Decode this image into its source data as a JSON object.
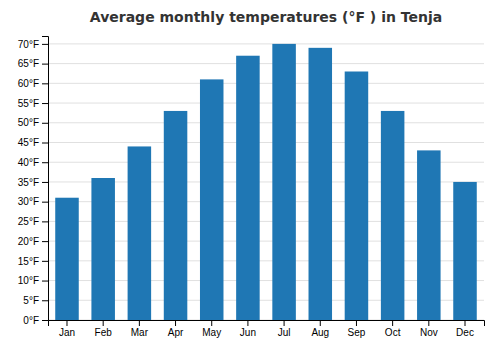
{
  "chart_data": {
    "type": "bar",
    "title": "Average monthly temperatures (°F ) in Tenja",
    "categories": [
      "Jan",
      "Feb",
      "Mar",
      "Apr",
      "May",
      "Jun",
      "Jul",
      "Aug",
      "Sep",
      "Oct",
      "Nov",
      "Dec"
    ],
    "values": [
      31,
      36,
      44,
      53,
      61,
      67,
      70,
      69,
      63,
      53,
      43,
      35
    ],
    "ylim": [
      0,
      72
    ],
    "yticks": [
      {
        "value": 0,
        "label": "0°F"
      },
      {
        "value": 5,
        "label": "5°F"
      },
      {
        "value": 10,
        "label": "10°F"
      },
      {
        "value": 15,
        "label": "15°F"
      },
      {
        "value": 20,
        "label": "20°F"
      },
      {
        "value": 25,
        "label": "25°F"
      },
      {
        "value": 30,
        "label": "30°F"
      },
      {
        "value": 35,
        "label": "35°F"
      },
      {
        "value": 40,
        "label": "40°F"
      },
      {
        "value": 45,
        "label": "45°F"
      },
      {
        "value": 50,
        "label": "50°F"
      },
      {
        "value": 55,
        "label": "55°F"
      },
      {
        "value": 60,
        "label": "60°F"
      },
      {
        "value": 65,
        "label": "65°F"
      },
      {
        "value": 70,
        "label": "70°F"
      }
    ],
    "grid": true
  }
}
